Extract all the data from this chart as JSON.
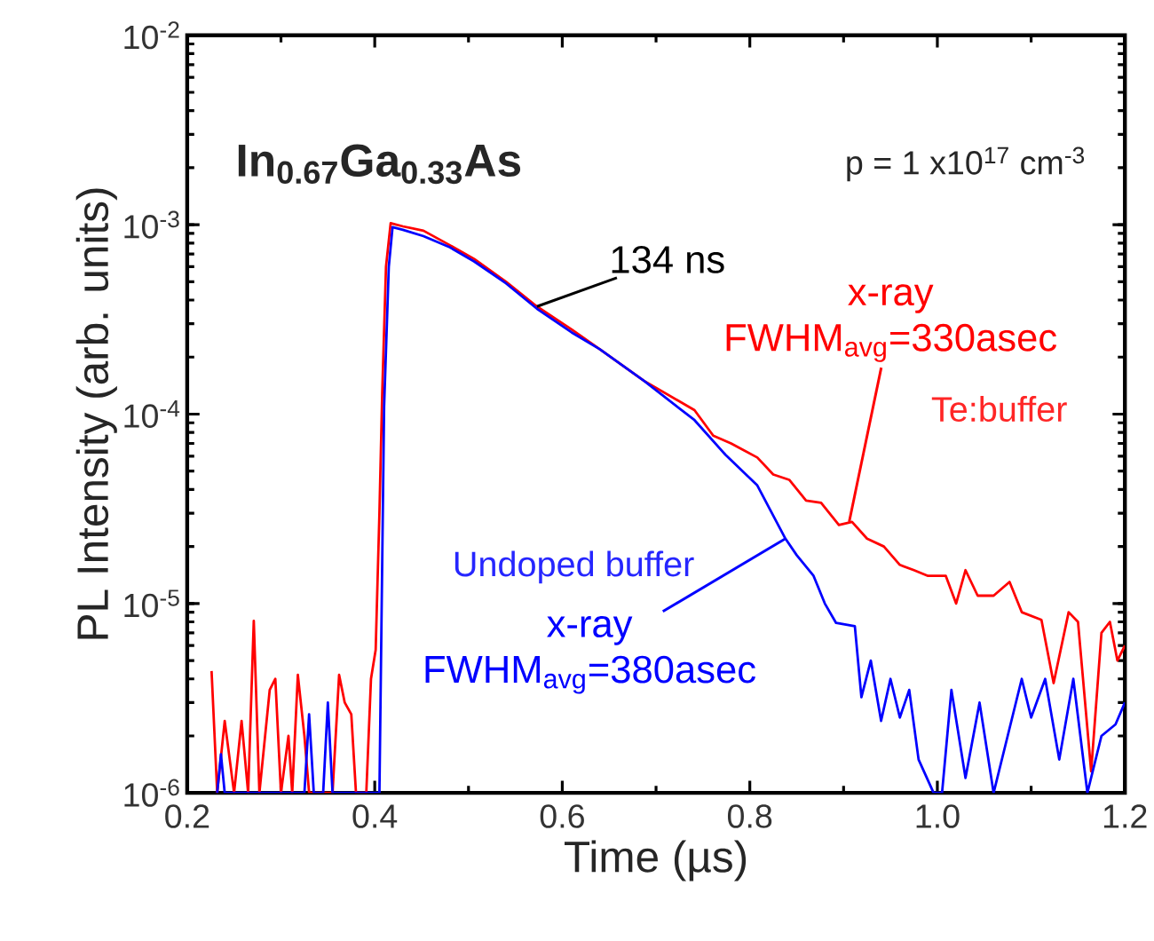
{
  "chart_data": {
    "type": "line",
    "xlabel": "Time (µs)",
    "ylabel": "PL Intensity (arb. units)",
    "log": "y",
    "marker": "none",
    "xlim": [
      0.2,
      1.2
    ],
    "ylim": [
      1e-06,
      0.01
    ],
    "xticks": [
      0.2,
      0.4,
      0.6,
      0.8,
      {
        "value": 1.0,
        "label": "1.0"
      },
      1.2
    ],
    "yticks": [
      {
        "value": 1e-06,
        "label": "10$^{-6}$"
      },
      {
        "value": 1e-05,
        "label": "10$^{-5}$"
      },
      {
        "value": 0.0001,
        "label": "10$^{-4}$"
      },
      {
        "value": 0.001,
        "label": "10$^{-3}$"
      },
      {
        "value": 0.01,
        "label": "10$^{-2}$"
      }
    ],
    "series": [
      {
        "name": "Te:buffer",
        "color": "#ff0000",
        "x": [
          0.226,
          0.232,
          0.24,
          0.25,
          0.258,
          0.265,
          0.271,
          0.277,
          0.288,
          0.294,
          0.3,
          0.308,
          0.312,
          0.318,
          0.325,
          0.33,
          0.355,
          0.362,
          0.368,
          0.375,
          0.38,
          0.391,
          0.396,
          0.401,
          0.405,
          0.408,
          0.412,
          0.417,
          0.43,
          0.452,
          0.48,
          0.506,
          0.54,
          0.573,
          0.61,
          0.64,
          0.687,
          0.741,
          0.761,
          0.78,
          0.808,
          0.825,
          0.842,
          0.86,
          0.876,
          0.895,
          0.909,
          0.925,
          0.943,
          0.96,
          0.975,
          0.99,
          1.009,
          1.02,
          1.03,
          1.043,
          1.06,
          1.077,
          1.09,
          1.111,
          1.124,
          1.14,
          1.15,
          1.164,
          1.175,
          1.184,
          1.192,
          1.2
        ],
        "values": [
          4.4e-06,
          1e-06,
          2.4e-06,
          1e-06,
          2.4e-06,
          1e-06,
          8.1e-06,
          1e-06,
          3.5e-06,
          4e-06,
          1e-06,
          2e-06,
          1e-06,
          4.2e-06,
          2e-06,
          1e-06,
          1e-06,
          4.2e-06,
          3e-06,
          2.6e-06,
          1e-06,
          1e-06,
          4e-06,
          5.7e-06,
          3e-05,
          0.00013,
          0.0006,
          0.00102,
          0.00098,
          0.00093,
          0.00078,
          0.00066,
          0.0005,
          0.00037,
          0.00028,
          0.00022,
          0.00015,
          0.000105,
          7.7e-05,
          7e-05,
          5.9e-05,
          4.8e-05,
          4.5e-05,
          3.5e-05,
          3.4e-05,
          2.6e-05,
          2.7e-05,
          2.2e-05,
          2e-05,
          1.6e-05,
          1.5e-05,
          1.4e-05,
          1.4e-05,
          1e-05,
          1.5e-05,
          1.1e-05,
          1.1e-05,
          1.3e-05,
          9e-06,
          8.2e-06,
          3.8e-06,
          9e-06,
          8e-06,
          1.3e-06,
          7e-06,
          8e-06,
          5e-06,
          6e-06
        ]
      },
      {
        "name": "Undoped buffer",
        "color": "#0000ff",
        "x": [
          0.232,
          0.236,
          0.24,
          0.3,
          0.325,
          0.33,
          0.335,
          0.345,
          0.35,
          0.355,
          0.405,
          0.41,
          0.415,
          0.419,
          0.43,
          0.452,
          0.48,
          0.506,
          0.54,
          0.573,
          0.61,
          0.64,
          0.687,
          0.741,
          0.774,
          0.808,
          0.838,
          0.85,
          0.868,
          0.88,
          0.892,
          0.912,
          0.919,
          0.929,
          0.94,
          0.95,
          0.96,
          0.97,
          0.98,
          0.996,
          1.005,
          1.015,
          1.03,
          1.045,
          1.06,
          1.075,
          1.09,
          1.1,
          1.115,
          1.13,
          1.145,
          1.16,
          1.175,
          1.19,
          1.2
        ],
        "values": [
          1e-06,
          1.6e-06,
          1e-06,
          1e-06,
          1e-06,
          2.6e-06,
          1e-06,
          1e-06,
          3e-06,
          1e-06,
          1e-06,
          0.00011,
          0.0006,
          0.00097,
          0.00094,
          0.00087,
          0.00076,
          0.00064,
          0.00049,
          0.00036,
          0.00027,
          0.00022,
          0.00015,
          9.3e-05,
          6.1e-05,
          4.2e-05,
          2.2e-05,
          1.8e-05,
          1.4e-05,
          1e-05,
          7.9e-06,
          7.6e-06,
          3.2e-06,
          5e-06,
          2.4e-06,
          4e-06,
          2.5e-06,
          3.5e-06,
          1.5e-06,
          1e-06,
          1e-06,
          3.5e-06,
          1.2e-06,
          3e-06,
          1e-06,
          2e-06,
          4e-06,
          2.5e-06,
          4e-06,
          1.5e-06,
          4e-06,
          1e-06,
          2e-06,
          2.3e-06,
          3e-06
        ]
      }
    ],
    "annotations": [
      "**In$_{0.67}$Ga$_{0.33}$As**",
      "p = 1 x10$^{17}$ cm$^{-3}$",
      {
        "text": "134 ns",
        "x": 0.573,
        "y": 0.00037
      },
      {
        "text": "x-ray FWHM$_{avg}$=330asec",
        "x": 0.906,
        "y": 2.7e-05
      },
      {
        "text": "x-ray FWHM$_{avg}$=380asec",
        "x": 0.838,
        "y": 2.2e-05
      }
    ]
  }
}
